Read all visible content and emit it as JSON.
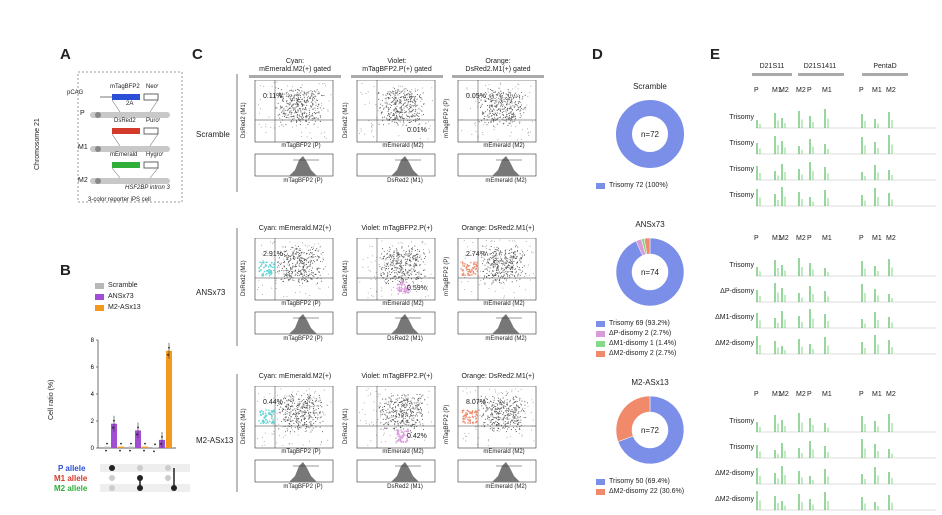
{
  "colors": {
    "blue": "#2a4fd6",
    "red": "#d43a2a",
    "green": "#2fae3a",
    "purple": "#a24dd6",
    "orange": "#f39a1e",
    "grey": "#b8b8b8",
    "teal": "#5fd4d4",
    "pink": "#d99ad9",
    "salmon": "#f08a6a",
    "pieBlue": "#7b8fe8"
  },
  "panelA": {
    "letter": "A",
    "chromosome": "Chromosome 21",
    "pcag": "pCAG",
    "mtag": "mTagBFP2",
    "neo": "Neoʳ",
    "twoA": "2A",
    "p": "P",
    "dsred": "DsRed2",
    "puro": "Puroʳ",
    "m1": "M1",
    "memerald": "mEmerald",
    "hygro": "Hygroʳ",
    "m2": "M2",
    "intron": "HSF2BP intron 3",
    "caption": "3-color reporter iPS cell"
  },
  "panelB": {
    "letter": "B",
    "legend": [
      "Scramble",
      "ANSx73",
      "M2-ASx13"
    ],
    "ylabel": "Cell ratio (%)",
    "ticks": [
      "0",
      "2",
      "4",
      "6",
      "8"
    ],
    "alleles": [
      "P allele",
      "M1 allele",
      "M2 allele"
    ]
  },
  "panelC": {
    "letter": "C",
    "cols": [
      {
        "color": "Cyan:",
        "title": "mEmerald.M2(+) gated"
      },
      {
        "color": "Violet:",
        "title": "mTagBFP2.P(+) gated"
      },
      {
        "color": "Orange:",
        "title": "DsRed2.M1(+) gated"
      }
    ],
    "rows": [
      {
        "name": "Scramble",
        "titles": [
          "",
          "",
          ""
        ],
        "pcts": [
          "0.11%",
          "0.01%",
          "0.05%"
        ]
      },
      {
        "name": "ANSx73",
        "titles": [
          "Cyan: mEmerald.M2(+)",
          "Violet: mTagBFP2.P(+)",
          "Orange: DsRed2.M1(+)"
        ],
        "pcts": [
          "2.91%",
          "0.59%",
          "2.74%"
        ]
      },
      {
        "name": "M2-ASx13",
        "titles": [
          "Cyan: mEmerald.M2(+)",
          "Violet: mTagBFP2.P(+)",
          "Orange: DsRed2.M1(+)"
        ],
        "pcts": [
          "0.44%",
          "0.42%",
          "8.07%"
        ]
      }
    ],
    "xlab": [
      "mTagBFP2 (P)",
      "mEmerald (M2)",
      "mEmerald (M2)"
    ],
    "ylab": [
      "DsRed2 (M1)",
      "DsRed2 (M1)",
      "mTagBFP2 (P)"
    ],
    "hxlab": [
      "mTagBFP2 (P)",
      "DsRed2 (M1)",
      "mEmerald (M2)"
    ]
  },
  "panelD": {
    "letter": "D",
    "rows": [
      {
        "title": "Scramble",
        "center": "n=72",
        "legend": [
          {
            "text": "Trisomy 72 (100%)",
            "color": "#7b8fe8"
          }
        ]
      },
      {
        "title": "ANSx73",
        "center": "n=74",
        "legend": [
          {
            "text": "Trisomy 69 (93.2%)",
            "color": "#7b8fe8"
          },
          {
            "text": "ΔP-disomy 2 (2.7%)",
            "color": "#d99ad9"
          },
          {
            "text": "ΔM1-disomy 1 (1.4%)",
            "color": "#86d98a"
          },
          {
            "text": "ΔM2-disomy 2 (2.7%)",
            "color": "#f08a6a"
          }
        ]
      },
      {
        "title": "M2-ASx13",
        "center": "n=72",
        "legend": [
          {
            "text": "Trisomy 50 (69.4%)",
            "color": "#7b8fe8"
          },
          {
            "text": "ΔM2-disomy 22 (30.6%)",
            "color": "#f08a6a"
          }
        ]
      }
    ]
  },
  "chart_data": [
    {
      "type": "bar",
      "title": "",
      "ylabel": "Cell ratio (%)",
      "ylim": [
        0,
        8
      ],
      "categories": [
        "P allele",
        "M1 allele",
        "M2 allele"
      ],
      "series": [
        {
          "name": "Scramble",
          "values": [
            0.1,
            0.1,
            0.05
          ]
        },
        {
          "name": "ANSx73",
          "values": [
            1.8,
            1.3,
            0.6
          ]
        },
        {
          "name": "M2-ASx13",
          "values": [
            0.1,
            0.1,
            7.2
          ]
        }
      ]
    },
    {
      "type": "pie",
      "title": "Scramble",
      "categories": [
        "Trisomy"
      ],
      "values": [
        72
      ]
    },
    {
      "type": "pie",
      "title": "ANSx73",
      "categories": [
        "Trisomy",
        "ΔP-disomy",
        "ΔM1-disomy",
        "ΔM2-disomy"
      ],
      "values": [
        69,
        2,
        1,
        2
      ]
    },
    {
      "type": "pie",
      "title": "M2-ASx13",
      "categories": [
        "Trisomy",
        "ΔM2-disomy"
      ],
      "values": [
        50,
        22
      ]
    }
  ],
  "panelE": {
    "letter": "E",
    "markers": [
      "D21S11",
      "D21S1411",
      "PentaD"
    ],
    "groups": [
      {
        "rows": [
          "Trisomy",
          "Trisomy",
          "Trisomy",
          "Trisomy"
        ]
      },
      {
        "rows": [
          "Trisomy",
          "ΔP-disomy",
          "ΔM1-disomy",
          "ΔM2-disomy"
        ]
      },
      {
        "rows": [
          "Trisomy",
          "Trisomy",
          "ΔM2-disomy",
          "ΔM2-disomy"
        ]
      }
    ],
    "peakLabels": [
      "P",
      "M1",
      "M2",
      "M2",
      "P",
      "M1",
      "P",
      "M1",
      "M2"
    ]
  }
}
